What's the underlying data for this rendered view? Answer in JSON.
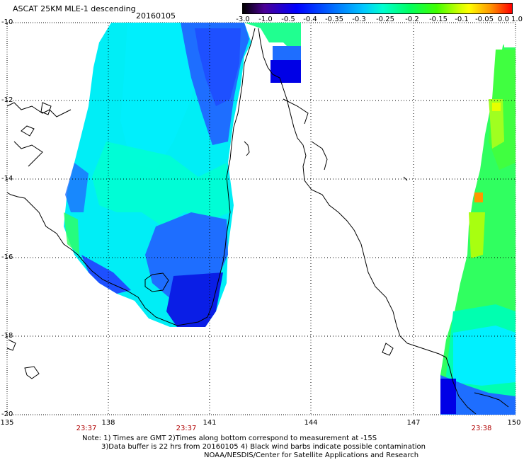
{
  "header": {
    "title": "ASCAT 25KM MLE-1 descending",
    "date": "20160105"
  },
  "colorbar": {
    "labels": [
      "-3.0",
      "-1.0",
      "-0.5",
      "-0.4",
      "-0.35",
      "-0.3",
      "-0.25",
      "-0.2",
      "-0.15",
      "-0.1",
      "-0.05",
      "0.0",
      "1.0"
    ]
  },
  "axes": {
    "latitudes": [
      "-10",
      "-12",
      "-14",
      "-16",
      "-18",
      "-20"
    ],
    "longitudes": [
      "135",
      "138",
      "141",
      "144",
      "147",
      "150"
    ]
  },
  "times": [
    "23:37",
    "23:37",
    "23:38"
  ],
  "footer": {
    "note1": "Note: 1) Times are GMT 2)Times along bottom correspond to measurement at -15S",
    "note2": "3)Data buffer is 22 hrs from 20160105 4) Black wind barbs indicate possible contamination",
    "credit": "NOAA/NESDIS/Center for Satellite Applications and Research"
  },
  "colors": {
    "deep_blue": "#0000e6",
    "blue": "#1e50ff",
    "cyan": "#00f0ff",
    "aqua": "#00ffd0",
    "green": "#30ff60",
    "yellow_green": "#b4ff00",
    "orange": "#ff9600"
  }
}
